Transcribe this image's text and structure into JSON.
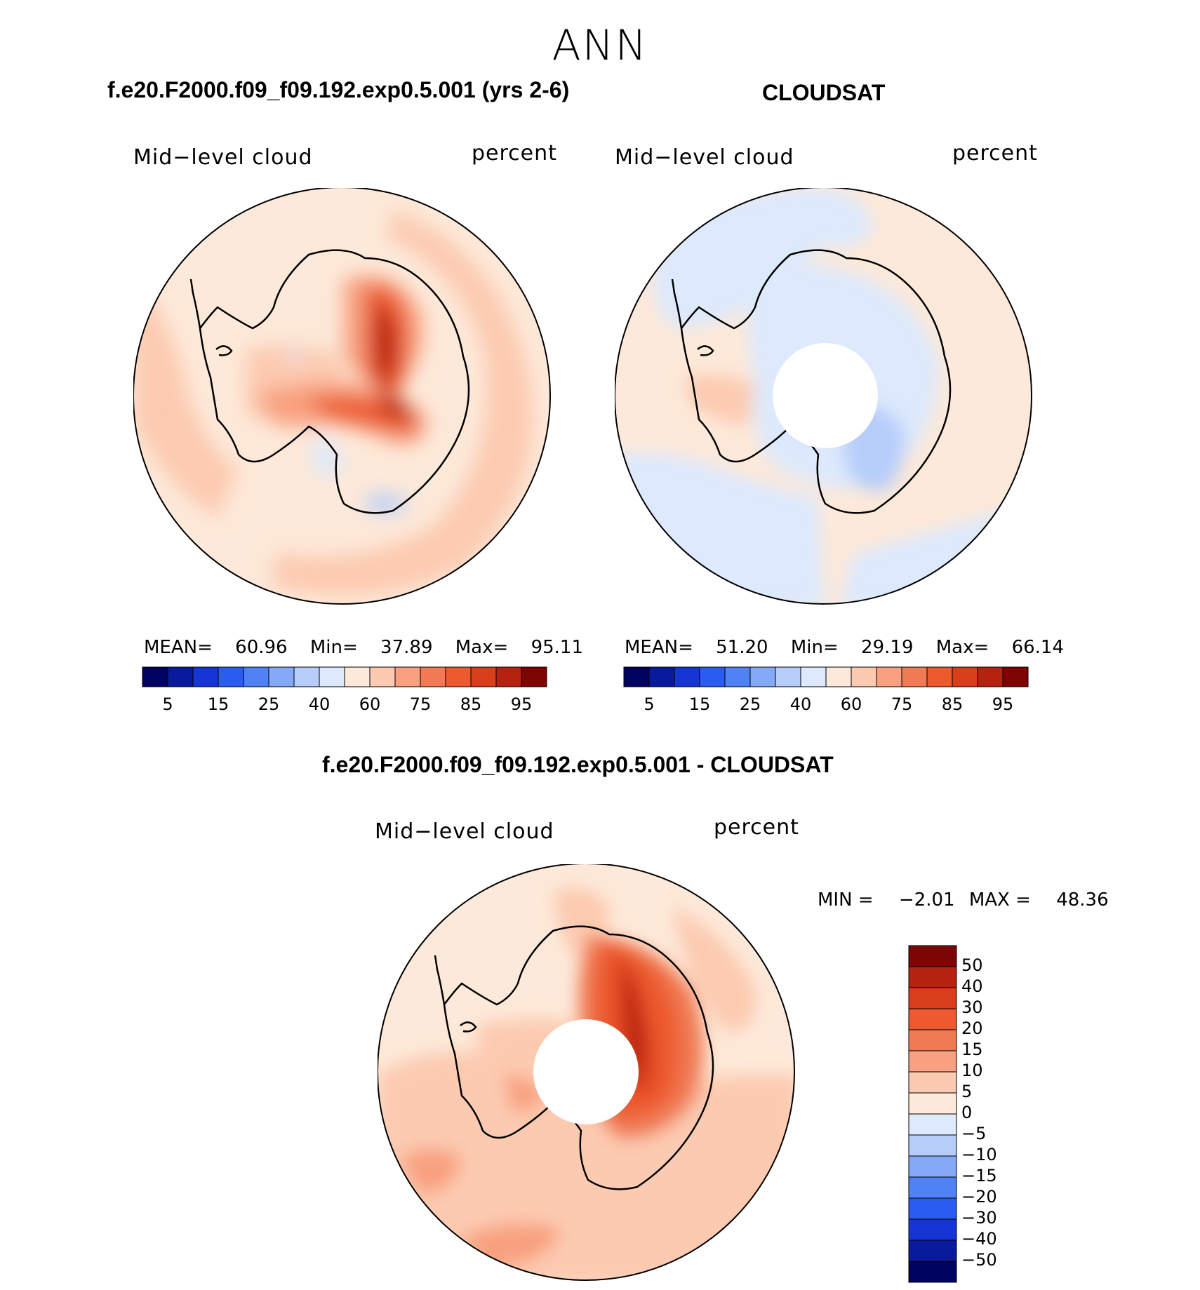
{
  "season": "ANN",
  "panels": [
    {
      "title": "f.e20.F2000.f09_f09.192.exp0.5.001 (yrs 2-6)",
      "variable": "Mid−level cloud",
      "units": "percent",
      "stats": {
        "mean_label": "MEAN=",
        "mean": "60.96",
        "min_label": "Min=",
        "min": "37.89",
        "max_label": "Max=",
        "max": "95.11"
      }
    },
    {
      "title": "CLOUDSAT",
      "variable": "Mid−level cloud",
      "units": "percent",
      "stats": {
        "mean_label": "MEAN=",
        "mean": "51.20",
        "min_label": "Min=",
        "min": "29.19",
        "max_label": "Max=",
        "max": "66.14"
      }
    }
  ],
  "diff_panel": {
    "title": "f.e20.F2000.f09_f09.192.exp0.5.001 - CLOUDSAT",
    "variable": "Mid−level cloud",
    "units": "percent",
    "min_label": "MIN =",
    "min": "−2.01",
    "max_label": "MAX =",
    "max": "48.36"
  },
  "chart_data": [
    {
      "type": "heatmap",
      "projection": "south polar stereographic",
      "title": "f.e20.F2000.f09_f09.192.exp0.5.001 (yrs 2-6)",
      "label": "Mid−level cloud",
      "units": "percent",
      "colorbar_ticks": [
        "5",
        "15",
        "25",
        "40",
        "60",
        "75",
        "85",
        "95"
      ],
      "colorbar_colors": [
        "#00035f",
        "#0a1a9c",
        "#1535d4",
        "#2a5cf0",
        "#4f83f5",
        "#85a8f7",
        "#b6cdfa",
        "#dde9fc",
        "#fde9d9",
        "#fccab0",
        "#f8a07f",
        "#f07a53",
        "#ec5a2e",
        "#d93e1a",
        "#b52310",
        "#7d0504"
      ],
      "mean": 60.96,
      "min": 37.89,
      "max": 95.11
    },
    {
      "type": "heatmap",
      "projection": "south polar stereographic",
      "title": "CLOUDSAT",
      "label": "Mid−level cloud",
      "units": "percent",
      "colorbar_ticks": [
        "5",
        "15",
        "25",
        "40",
        "60",
        "75",
        "85",
        "95"
      ],
      "colorbar_colors": [
        "#00035f",
        "#0a1a9c",
        "#1535d4",
        "#2a5cf0",
        "#4f83f5",
        "#85a8f7",
        "#b6cdfa",
        "#dde9fc",
        "#fde9d9",
        "#fccab0",
        "#f8a07f",
        "#f07a53",
        "#ec5a2e",
        "#d93e1a",
        "#b52310",
        "#7d0504"
      ],
      "mean": 51.2,
      "min": 29.19,
      "max": 66.14
    },
    {
      "type": "heatmap",
      "projection": "south polar stereographic",
      "title": "f.e20.F2000.f09_f09.192.exp0.5.001 - CLOUDSAT",
      "label": "Mid−level cloud",
      "units": "percent",
      "colorbar_ticks": [
        "50",
        "40",
        "30",
        "20",
        "15",
        "10",
        "5",
        "0",
        "−5",
        "−10",
        "−15",
        "−20",
        "−30",
        "−40",
        "−50"
      ],
      "colorbar_colors": [
        "#7d0504",
        "#b52310",
        "#d93e1a",
        "#ec5a2e",
        "#f07a53",
        "#f8a07f",
        "#fccab0",
        "#fde9d9",
        "#dde9fc",
        "#b6cdfa",
        "#85a8f7",
        "#4f83f5",
        "#2a5cf0",
        "#1535d4",
        "#0a1a9c",
        "#00035f"
      ],
      "min": -2.01,
      "max": 48.36
    }
  ]
}
